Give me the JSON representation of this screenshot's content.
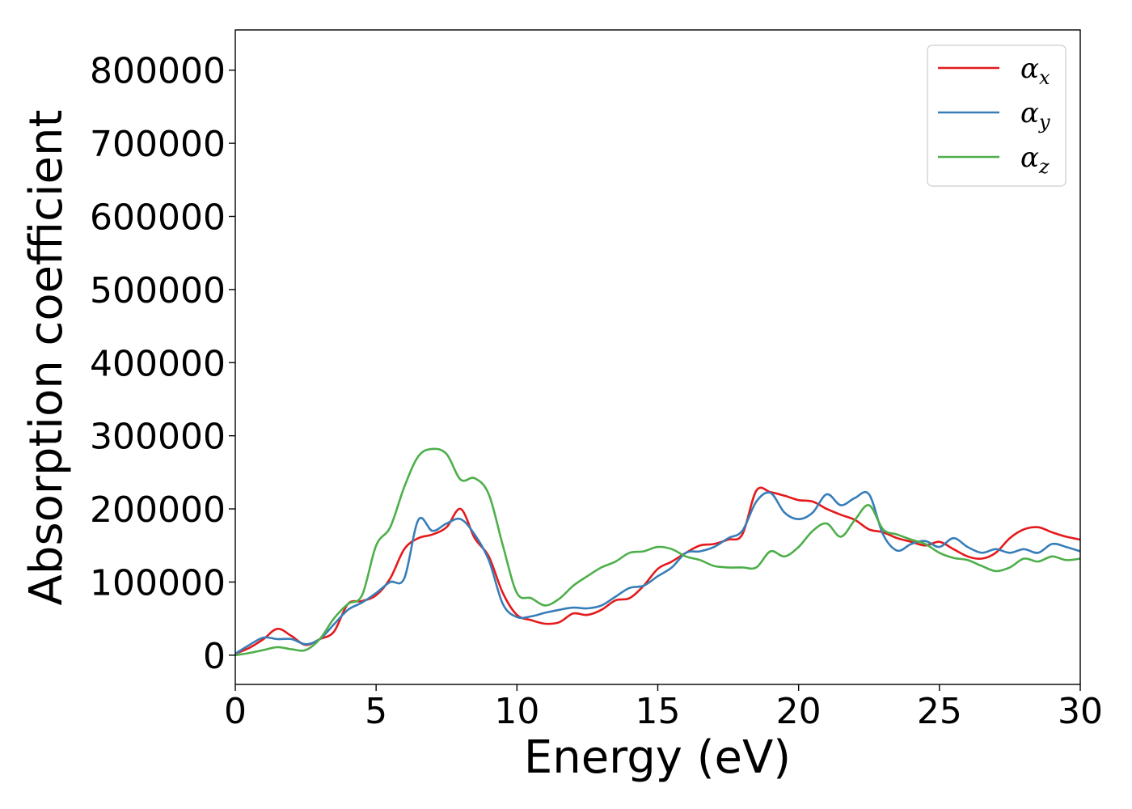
{
  "chart_data": {
    "type": "line",
    "title": "",
    "xlabel": "Energy (eV)",
    "ylabel": "Absorption coefficient",
    "xlim": [
      0,
      30
    ],
    "ylim": [
      -40000,
      855000
    ],
    "xticks": [
      0,
      5,
      10,
      15,
      20,
      25,
      30
    ],
    "yticks": [
      0,
      100000,
      200000,
      300000,
      400000,
      500000,
      600000,
      700000,
      800000
    ],
    "grid": false,
    "legend_position": "top-right",
    "series": [
      {
        "name": "α_x",
        "legend_symbol": "α",
        "legend_subscript": "x",
        "color": "#e41a1c",
        "x": [
          0,
          0.5,
          1,
          1.5,
          2,
          2.5,
          3,
          3.5,
          4,
          4.5,
          5,
          5.5,
          6,
          6.5,
          7,
          7.5,
          8,
          8.5,
          9,
          9.5,
          10,
          10.5,
          11,
          11.5,
          12,
          12.5,
          13,
          13.5,
          14,
          14.5,
          15,
          15.5,
          16,
          16.5,
          17,
          17.5,
          18,
          18.5,
          19,
          19.5,
          20,
          20.5,
          21,
          21.5,
          22,
          22.5,
          23,
          23.5,
          24,
          24.5,
          25,
          25.5,
          26,
          26.5,
          27,
          27.5,
          28,
          28.5,
          29,
          29.5,
          30
        ],
        "y": [
          2000,
          10000,
          22000,
          36000,
          26000,
          14000,
          22000,
          32000,
          70000,
          74000,
          82000,
          105000,
          145000,
          160000,
          165000,
          175000,
          200000,
          160000,
          135000,
          85000,
          55000,
          48000,
          43000,
          45000,
          57000,
          55000,
          62000,
          75000,
          78000,
          95000,
          118000,
          128000,
          140000,
          150000,
          152000,
          158000,
          165000,
          225000,
          223000,
          218000,
          212000,
          210000,
          200000,
          192000,
          185000,
          172000,
          168000,
          160000,
          155000,
          150000,
          155000,
          145000,
          135000,
          132000,
          140000,
          160000,
          172000,
          175000,
          168000,
          162000,
          158000
        ]
      },
      {
        "name": "α_y",
        "legend_symbol": "α",
        "legend_subscript": "y",
        "color": "#377eb8",
        "x": [
          0,
          0.5,
          1,
          1.5,
          2,
          2.5,
          3,
          3.5,
          4,
          4.5,
          5,
          5.5,
          6,
          6.5,
          7,
          7.5,
          8,
          8.5,
          9,
          9.5,
          10,
          10.5,
          11,
          11.5,
          12,
          12.5,
          13,
          13.5,
          14,
          14.5,
          15,
          15.5,
          16,
          16.5,
          17,
          17.5,
          18,
          18.5,
          19,
          19.5,
          20,
          20.5,
          21,
          21.5,
          22,
          22.5,
          23,
          23.5,
          24,
          24.5,
          25,
          25.5,
          26,
          26.5,
          27,
          27.5,
          28,
          28.5,
          29,
          29.5,
          30
        ],
        "y": [
          2000,
          14000,
          24000,
          22000,
          22000,
          15000,
          22000,
          42000,
          62000,
          72000,
          85000,
          100000,
          105000,
          185000,
          170000,
          180000,
          186000,
          165000,
          130000,
          70000,
          52000,
          53000,
          58000,
          62000,
          65000,
          64000,
          68000,
          80000,
          92000,
          95000,
          108000,
          120000,
          140000,
          142000,
          148000,
          160000,
          170000,
          210000,
          222000,
          195000,
          186000,
          195000,
          220000,
          205000,
          215000,
          220000,
          165000,
          143000,
          152000,
          156000,
          148000,
          160000,
          148000,
          140000,
          145000,
          140000,
          145000,
          140000,
          152000,
          148000,
          142000
        ]
      },
      {
        "name": "α_z",
        "legend_symbol": "α",
        "legend_subscript": "z",
        "color": "#4daf4a",
        "x": [
          0,
          0.5,
          1,
          1.5,
          2,
          2.5,
          3,
          3.5,
          4,
          4.5,
          5,
          5.5,
          6,
          6.5,
          7,
          7.5,
          8,
          8.5,
          9,
          9.5,
          10,
          10.5,
          11,
          11.5,
          12,
          12.5,
          13,
          13.5,
          14,
          14.5,
          15,
          15.5,
          16,
          16.5,
          17,
          17.5,
          18,
          18.5,
          19,
          19.5,
          20,
          20.5,
          21,
          21.5,
          22,
          22.5,
          23,
          23.5,
          24,
          24.5,
          25,
          25.5,
          26,
          26.5,
          27,
          27.5,
          28,
          28.5,
          29,
          29.5,
          30
        ],
        "y": [
          0,
          3000,
          7000,
          11000,
          8000,
          7000,
          22000,
          50000,
          70000,
          82000,
          150000,
          175000,
          230000,
          272000,
          282000,
          275000,
          240000,
          242000,
          220000,
          150000,
          85000,
          78000,
          68000,
          77000,
          95000,
          108000,
          120000,
          128000,
          140000,
          142000,
          148000,
          145000,
          135000,
          130000,
          122000,
          120000,
          120000,
          120000,
          142000,
          135000,
          148000,
          170000,
          180000,
          162000,
          185000,
          205000,
          172000,
          165000,
          158000,
          152000,
          140000,
          133000,
          130000,
          122000,
          115000,
          120000,
          132000,
          128000,
          135000,
          130000,
          132000
        ]
      }
    ]
  }
}
